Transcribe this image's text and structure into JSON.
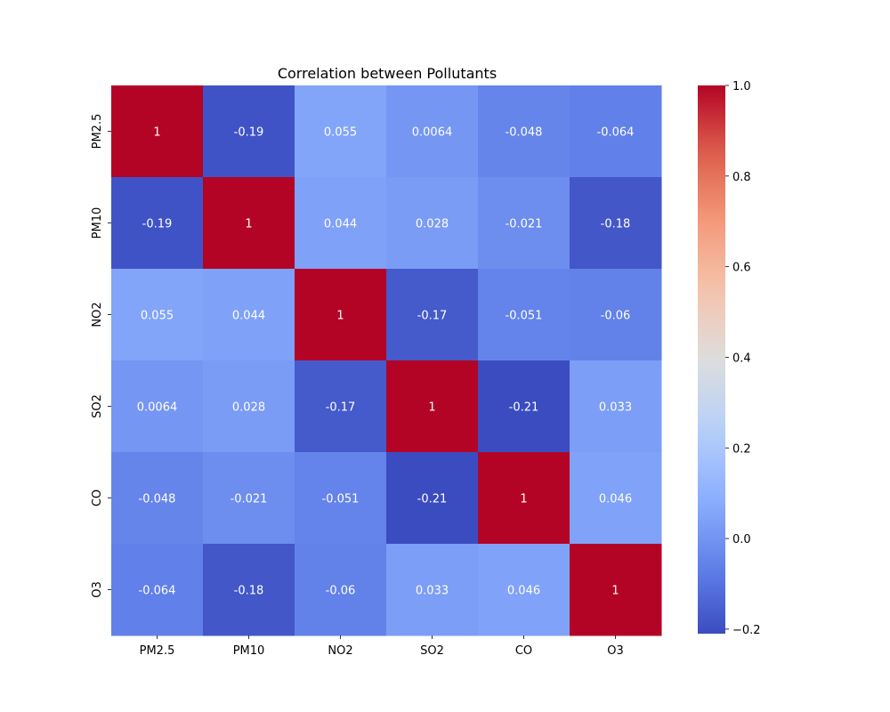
{
  "chart_data": {
    "type": "heatmap",
    "title": "Correlation between Pollutants",
    "xlabel": "",
    "ylabel": "",
    "x_categories": [
      "PM2.5",
      "PM10",
      "NO2",
      "SO2",
      "CO",
      "O3"
    ],
    "y_categories": [
      "PM2.5",
      "PM10",
      "NO2",
      "SO2",
      "CO",
      "O3"
    ],
    "values": [
      [
        1,
        -0.19,
        0.055,
        0.0064,
        -0.048,
        -0.064
      ],
      [
        -0.19,
        1,
        0.044,
        0.028,
        -0.021,
        -0.18
      ],
      [
        0.055,
        0.044,
        1,
        -0.17,
        -0.051,
        -0.06
      ],
      [
        0.0064,
        0.028,
        -0.17,
        1,
        -0.21,
        0.033
      ],
      [
        -0.048,
        -0.021,
        -0.051,
        -0.21,
        1,
        0.046
      ],
      [
        -0.064,
        -0.18,
        -0.06,
        0.033,
        0.046,
        1
      ]
    ],
    "value_labels": [
      [
        "1",
        "-0.19",
        "0.055",
        "0.0064",
        "-0.048",
        "-0.064"
      ],
      [
        "-0.19",
        "1",
        "0.044",
        "0.028",
        "-0.021",
        "-0.18"
      ],
      [
        "0.055",
        "0.044",
        "1",
        "-0.17",
        "-0.051",
        "-0.06"
      ],
      [
        "0.0064",
        "0.028",
        "-0.17",
        "1",
        "-0.21",
        "0.033"
      ],
      [
        "-0.048",
        "-0.021",
        "-0.051",
        "-0.21",
        "1",
        "0.046"
      ],
      [
        "-0.064",
        "-0.18",
        "-0.06",
        "0.033",
        "0.046",
        "1"
      ]
    ],
    "colormap": "coolwarm",
    "colorbar": {
      "range": [
        -0.21,
        1.0
      ],
      "ticks": [
        -0.2,
        0.0,
        0.2,
        0.4,
        0.6,
        0.8,
        1.0
      ],
      "tick_labels": [
        "−0.2",
        "0.0",
        "0.2",
        "0.4",
        "0.6",
        "0.8",
        "1.0"
      ]
    },
    "annotations_color": "#ffffff",
    "grid": false,
    "legend": "colorbar-right"
  }
}
